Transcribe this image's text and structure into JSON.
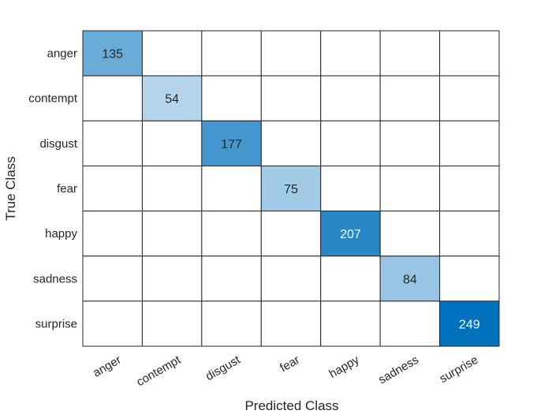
{
  "chart_data": {
    "type": "heatmap",
    "title": "",
    "xlabel": "Predicted Class",
    "ylabel": "True Class",
    "rows": [
      "anger",
      "contempt",
      "disgust",
      "fear",
      "happy",
      "sadness",
      "surprise"
    ],
    "columns": [
      "anger",
      "contempt",
      "disgust",
      "fear",
      "happy",
      "sadness",
      "surprise"
    ],
    "matrix": [
      [
        135,
        null,
        null,
        null,
        null,
        null,
        null
      ],
      [
        null,
        54,
        null,
        null,
        null,
        null,
        null
      ],
      [
        null,
        null,
        177,
        null,
        null,
        null,
        null
      ],
      [
        null,
        null,
        null,
        75,
        null,
        null,
        null
      ],
      [
        null,
        null,
        null,
        null,
        207,
        null,
        null
      ],
      [
        null,
        null,
        null,
        null,
        null,
        84,
        null
      ],
      [
        null,
        null,
        null,
        null,
        null,
        null,
        249
      ]
    ],
    "colormap": {
      "low": "#e6f0f8",
      "high": "#0072bd"
    },
    "empty_cell_color": "#ffffff",
    "grid": true,
    "legend": "none"
  }
}
